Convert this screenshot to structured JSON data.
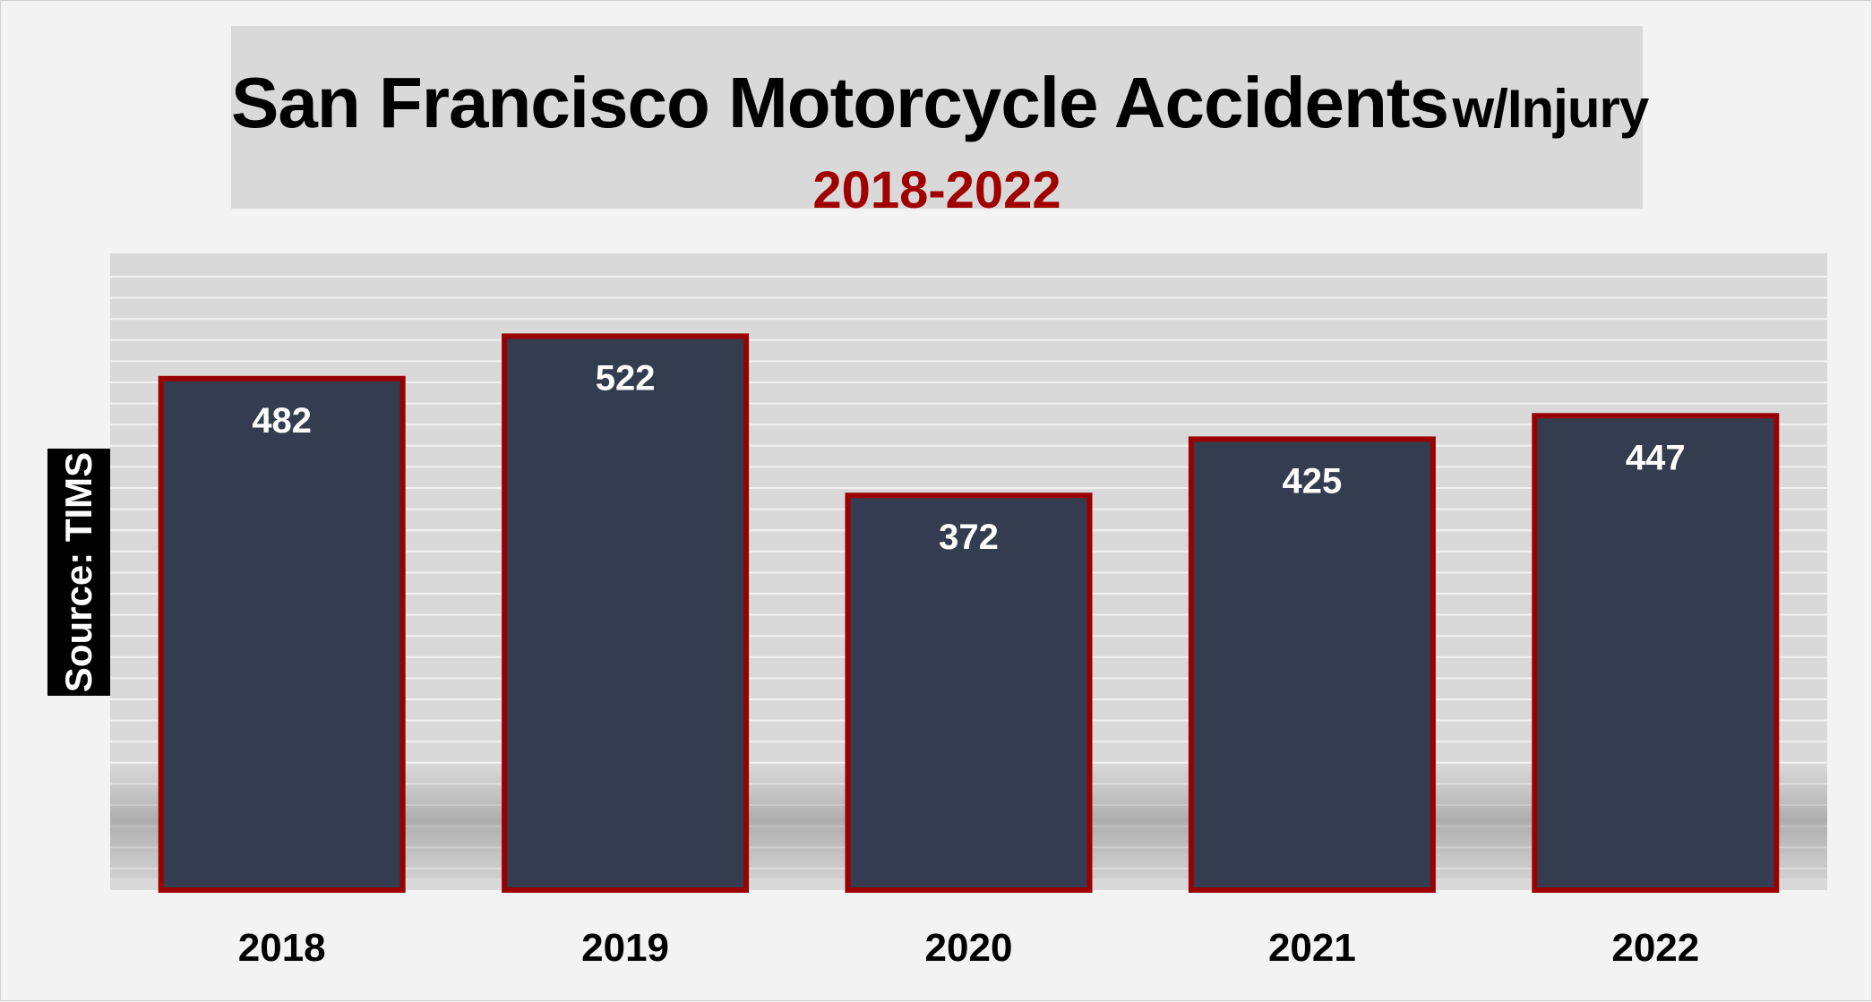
{
  "chart_data": {
    "type": "bar",
    "title": "San Francisco Motorcycle Accidents",
    "title_suffix": "w/Injury",
    "subtitle": "2018-2022",
    "source_note": "Source: TIMS",
    "categories": [
      "2018",
      "2019",
      "2020",
      "2021",
      "2022"
    ],
    "values": [
      482,
      522,
      372,
      425,
      447
    ],
    "xlabel": "",
    "ylabel": "",
    "ylim": [
      0,
      600
    ],
    "grid": true,
    "legend": "none",
    "data_labels": "inside-top"
  },
  "colors": {
    "bar_fill": "#333d4f",
    "bar_border": "#9a0000",
    "plot_background": "#d9d9d9",
    "gridline": "#f2f2f2",
    "title": "#000000",
    "subtitle": "#a00000",
    "data_label": "#ffffff",
    "page_background": "#f3f3f3"
  }
}
